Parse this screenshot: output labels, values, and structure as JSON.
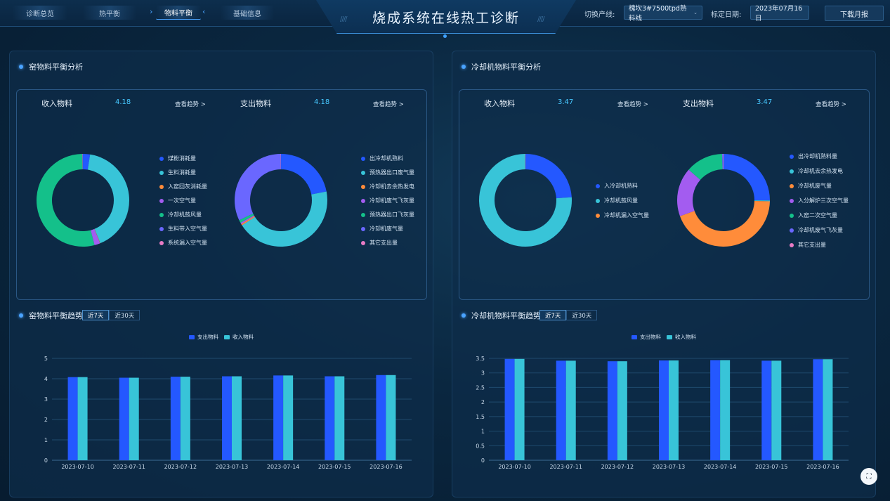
{
  "header": {
    "title": "烧成系统在线热工诊断",
    "tabs": [
      {
        "label": "诊断总览"
      },
      {
        "label": "热平衡"
      },
      {
        "label": "物料平衡"
      },
      {
        "label": "基础信息"
      }
    ],
    "active_tab": "物料平衡",
    "line_label": "切换产线:",
    "line_value": "槐坎3#7500tpd熟料线",
    "date_label": "标定日期:",
    "date_value": "2023年07月16日",
    "download_label": "下载月报"
  },
  "kiln": {
    "section_title": "窑物料平衡分析",
    "income": {
      "label": "收入物料",
      "value": "4.18",
      "trend_link": "查看趋势 >",
      "legend": [
        "煤粉消耗量",
        "生料消耗量",
        "入窑回灰消耗量",
        "一次空气量",
        "冷却机鼓风量",
        "生料带入空气量",
        "系统漏入空气量"
      ],
      "slices": [
        2.5,
        41.5,
        0.1,
        2.0,
        54.0,
        0.1,
        0.1
      ]
    },
    "outcome": {
      "label": "支出物料",
      "value": "4.18",
      "trend_link": "查看趋势 >",
      "legend": [
        "出冷却机熟料",
        "预热器出口废气量",
        "冷却机去余热发电",
        "冷却机废气飞灰量",
        "预热器出口飞灰量",
        "冷却机废气量",
        "其它支出量"
      ],
      "slices": [
        22.0,
        44.0,
        0.5,
        0.5,
        1.0,
        32.0,
        0.1
      ]
    },
    "trend": {
      "title": "窑物料平衡趋势",
      "range_tabs": [
        "近7天",
        "近30天"
      ],
      "active_range": "近7天"
    }
  },
  "cooler": {
    "section_title": "冷却机物料平衡分析",
    "income": {
      "label": "收入物料",
      "value": "3.47",
      "trend_link": "查看趋势 >",
      "legend": [
        "入冷却机熟料",
        "冷却机鼓风量",
        "冷却机漏入空气量"
      ],
      "slices": [
        24.0,
        76.0,
        0.1
      ]
    },
    "outcome": {
      "label": "支出物料",
      "value": "3.47",
      "trend_link": "查看趋势 >",
      "legend": [
        "出冷却机熟料量",
        "冷却机去余热发电",
        "冷却机废气量",
        "入分解炉三次空气量",
        "入窑二次空气量",
        "冷却机废气飞灰量",
        "其它支出量"
      ],
      "slices": [
        25.0,
        0.3,
        44.0,
        17.0,
        13.0,
        0.3,
        0.2
      ]
    },
    "trend": {
      "title": "冷却机物料平衡趋势",
      "range_tabs": [
        "近7天",
        "近30天"
      ],
      "active_range": "近7天"
    }
  },
  "colors": {
    "blue": "#2458ff",
    "cyan": "#38c4d8",
    "orange": "#ff8c3a",
    "purple": "#a35cf0",
    "green": "#14c08a",
    "violet": "#6a67ff",
    "pink": "#e87bc5",
    "teal": "#1fc7a1"
  },
  "chart_data": [
    {
      "type": "bar",
      "title": "窑物料平衡趋势",
      "categories": [
        "2023-07-10",
        "2023-07-11",
        "2023-07-12",
        "2023-07-13",
        "2023-07-14",
        "2023-07-15",
        "2023-07-16"
      ],
      "series": [
        {
          "name": "支出物料",
          "values": [
            4.08,
            4.05,
            4.1,
            4.12,
            4.16,
            4.12,
            4.18
          ]
        },
        {
          "name": "收入物料",
          "values": [
            4.08,
            4.05,
            4.1,
            4.12,
            4.16,
            4.12,
            4.18
          ]
        }
      ],
      "yticks": [
        "0",
        "1",
        "2",
        "3",
        "4",
        "5"
      ],
      "ylim": [
        0,
        5
      ],
      "legend_position": "top-center",
      "grid": true
    },
    {
      "type": "bar",
      "title": "冷却机物料平衡趋势",
      "categories": [
        "2023-07-10",
        "2023-07-11",
        "2023-07-12",
        "2023-07-13",
        "2023-07-14",
        "2023-07-15",
        "2023-07-16"
      ],
      "series": [
        {
          "name": "支出物料",
          "values": [
            3.48,
            3.42,
            3.4,
            3.43,
            3.44,
            3.42,
            3.47
          ]
        },
        {
          "name": "收入物料",
          "values": [
            3.48,
            3.42,
            3.4,
            3.43,
            3.44,
            3.42,
            3.47
          ]
        }
      ],
      "yticks": [
        "0",
        "0.5",
        "1",
        "1.5",
        "2",
        "2.5",
        "3",
        "3.5"
      ],
      "ylim": [
        0,
        3.5
      ],
      "legend_position": "top-center",
      "grid": true
    }
  ]
}
